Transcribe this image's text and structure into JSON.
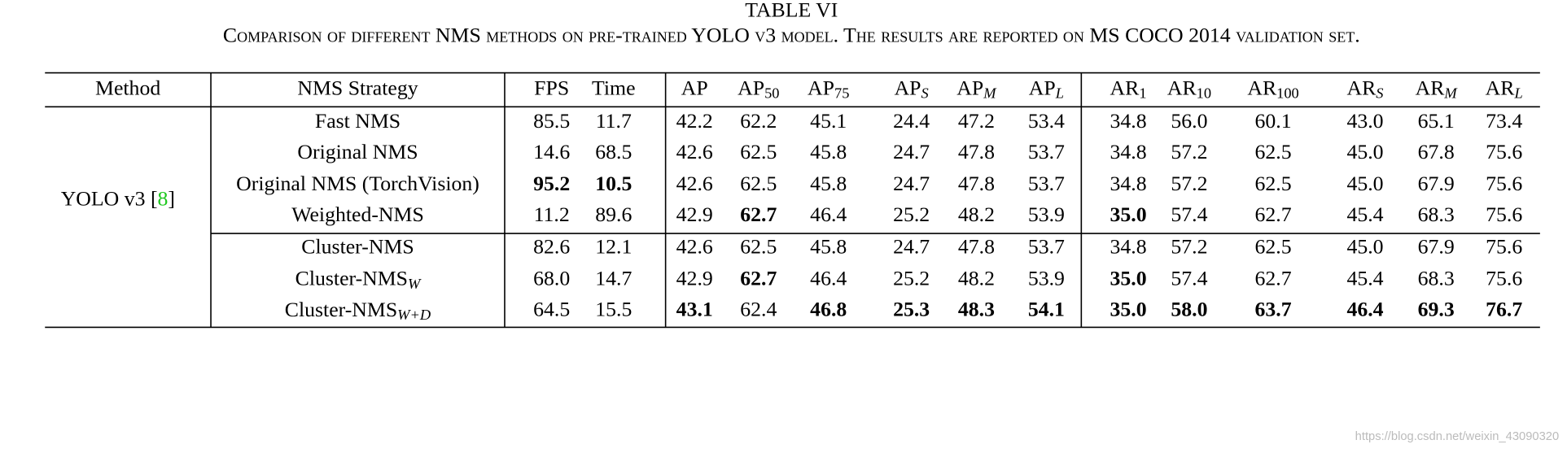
{
  "table_title": "TABLE VI",
  "caption": "Comparison of different NMS methods on pre-trained YOLO v3 model. The results are reported on MS COCO 2014 validation set.",
  "table": {
    "header": [
      {
        "text": "Method"
      },
      {
        "text": "NMS Strategy"
      },
      {
        "text": "FPS"
      },
      {
        "text": "Time"
      },
      {
        "text": "AP"
      },
      {
        "text": "AP",
        "sub": "50"
      },
      {
        "text": "AP",
        "sub": "75"
      },
      {
        "text": "AP",
        "sub": "S"
      },
      {
        "text": "AP",
        "sub": "M"
      },
      {
        "text": "AP",
        "sub": "L"
      },
      {
        "text": "AR",
        "sub": "1"
      },
      {
        "text": "AR",
        "sub": "10"
      },
      {
        "text": "AR",
        "sub": "100"
      },
      {
        "text": "AR",
        "sub": "S"
      },
      {
        "text": "AR",
        "sub": "M"
      },
      {
        "text": "AR",
        "sub": "L"
      }
    ],
    "method": {
      "text": "YOLO v3 [",
      "ref": "8",
      "close": "]"
    },
    "rows": [
      {
        "strategy": {
          "text": "Fast NMS"
        },
        "cells": [
          {
            "text": "85.5"
          },
          {
            "text": "11.7"
          },
          {
            "text": "42.2"
          },
          {
            "text": "62.2"
          },
          {
            "text": "45.1"
          },
          {
            "text": "24.4"
          },
          {
            "text": "47.2"
          },
          {
            "text": "53.4"
          },
          {
            "text": "34.8"
          },
          {
            "text": "56.0"
          },
          {
            "text": "60.1"
          },
          {
            "text": "43.0"
          },
          {
            "text": "65.1"
          },
          {
            "text": "73.4"
          }
        ]
      },
      {
        "strategy": {
          "text": "Original NMS"
        },
        "cells": [
          {
            "text": "14.6"
          },
          {
            "text": "68.5"
          },
          {
            "text": "42.6"
          },
          {
            "text": "62.5"
          },
          {
            "text": "45.8"
          },
          {
            "text": "24.7"
          },
          {
            "text": "47.8"
          },
          {
            "text": "53.7"
          },
          {
            "text": "34.8"
          },
          {
            "text": "57.2"
          },
          {
            "text": "62.5"
          },
          {
            "text": "45.0"
          },
          {
            "text": "67.8"
          },
          {
            "text": "75.6"
          }
        ]
      },
      {
        "strategy": {
          "text": "Original NMS (TorchVision)"
        },
        "cells": [
          {
            "text": "95.2",
            "bold": true
          },
          {
            "text": "10.5",
            "bold": true
          },
          {
            "text": "42.6"
          },
          {
            "text": "62.5"
          },
          {
            "text": "45.8"
          },
          {
            "text": "24.7"
          },
          {
            "text": "47.8"
          },
          {
            "text": "53.7"
          },
          {
            "text": "34.8"
          },
          {
            "text": "57.2"
          },
          {
            "text": "62.5"
          },
          {
            "text": "45.0"
          },
          {
            "text": "67.9"
          },
          {
            "text": "75.6"
          }
        ]
      },
      {
        "strategy": {
          "text": "Weighted-NMS"
        },
        "cells": [
          {
            "text": "11.2"
          },
          {
            "text": "89.6"
          },
          {
            "text": "42.9"
          },
          {
            "text": "62.7",
            "bold": true
          },
          {
            "text": "46.4"
          },
          {
            "text": "25.2"
          },
          {
            "text": "48.2"
          },
          {
            "text": "53.9"
          },
          {
            "text": "35.0",
            "bold": true
          },
          {
            "text": "57.4"
          },
          {
            "text": "62.7"
          },
          {
            "text": "45.4"
          },
          {
            "text": "68.3"
          },
          {
            "text": "75.6"
          }
        ]
      },
      {
        "strategy": {
          "text": "Cluster-NMS"
        },
        "cells": [
          {
            "text": "82.6"
          },
          {
            "text": "12.1"
          },
          {
            "text": "42.6"
          },
          {
            "text": "62.5"
          },
          {
            "text": "45.8"
          },
          {
            "text": "24.7"
          },
          {
            "text": "47.8"
          },
          {
            "text": "53.7"
          },
          {
            "text": "34.8"
          },
          {
            "text": "57.2"
          },
          {
            "text": "62.5"
          },
          {
            "text": "45.0"
          },
          {
            "text": "67.9"
          },
          {
            "text": "75.6"
          }
        ]
      },
      {
        "strategy": {
          "text": "Cluster-NMS",
          "sub": "W"
        },
        "cells": [
          {
            "text": "68.0"
          },
          {
            "text": "14.7"
          },
          {
            "text": "42.9"
          },
          {
            "text": "62.7",
            "bold": true
          },
          {
            "text": "46.4"
          },
          {
            "text": "25.2"
          },
          {
            "text": "48.2"
          },
          {
            "text": "53.9"
          },
          {
            "text": "35.0",
            "bold": true
          },
          {
            "text": "57.4"
          },
          {
            "text": "62.7"
          },
          {
            "text": "45.4"
          },
          {
            "text": "68.3"
          },
          {
            "text": "75.6"
          }
        ]
      },
      {
        "strategy": {
          "text": "Cluster-NMS",
          "sub": "W+D"
        },
        "cells": [
          {
            "text": "64.5"
          },
          {
            "text": "15.5"
          },
          {
            "text": "43.1",
            "bold": true
          },
          {
            "text": "62.4"
          },
          {
            "text": "46.8",
            "bold": true
          },
          {
            "text": "25.3",
            "bold": true
          },
          {
            "text": "48.3",
            "bold": true
          },
          {
            "text": "54.1",
            "bold": true
          },
          {
            "text": "35.0",
            "bold": true
          },
          {
            "text": "58.0",
            "bold": true
          },
          {
            "text": "63.7",
            "bold": true
          },
          {
            "text": "46.4",
            "bold": true
          },
          {
            "text": "69.3",
            "bold": true
          },
          {
            "text": "76.7",
            "bold": true
          }
        ]
      }
    ]
  },
  "watermark": "https://blog.csdn.net/weixin_43090320"
}
